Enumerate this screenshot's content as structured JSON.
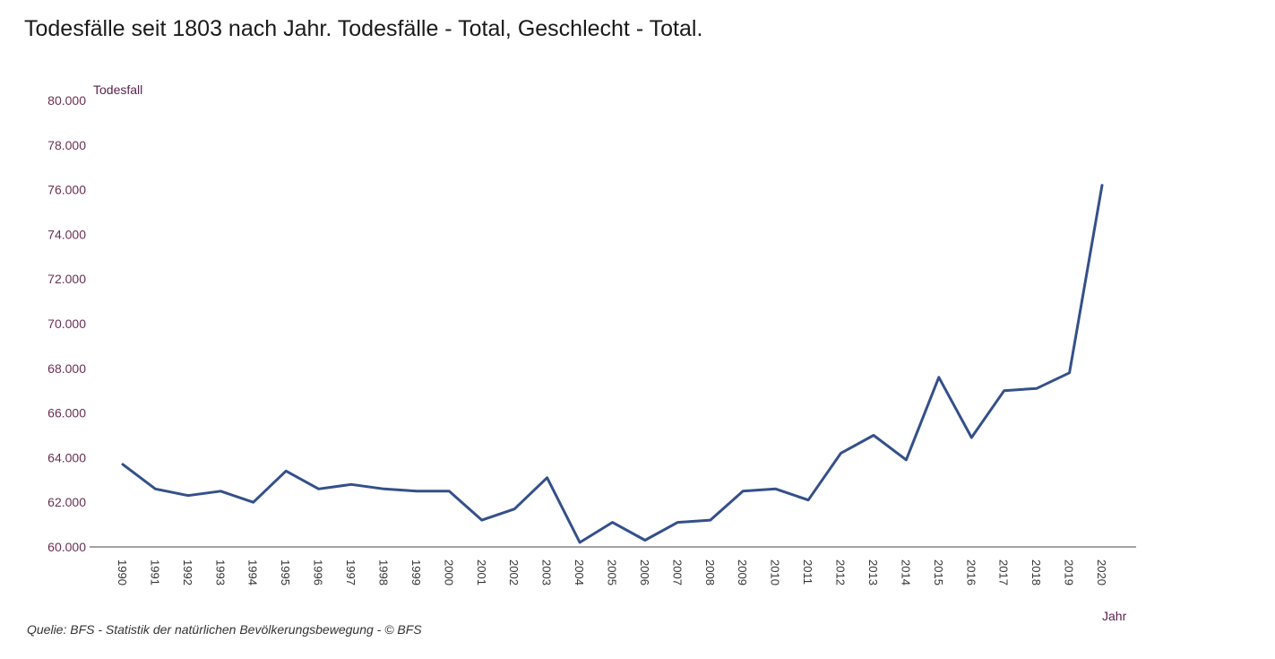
{
  "title": "Todesfälle seit 1803 nach Jahr. Todesfälle - Total, Geschlecht - Total.",
  "source": "Quelie: BFS - Statistik der natürlichen Bevölkerungsbewegung - © BFS",
  "colors": {
    "line": "#34508a",
    "axis": "#444444",
    "tick_label": "#6a2f52",
    "axis_title": "#5a1f4a"
  },
  "chart_data": {
    "type": "line",
    "title": "Todesfälle seit 1803 nach Jahr. Todesfälle - Total, Geschlecht - Total.",
    "xlabel": "Jahr",
    "ylabel": "Todesfall",
    "ylim": [
      60000,
      80000
    ],
    "yticks": [
      60000,
      62000,
      64000,
      66000,
      68000,
      70000,
      72000,
      74000,
      76000,
      78000,
      80000
    ],
    "ytick_labels": [
      "60.000",
      "62.000",
      "64.000",
      "66.000",
      "68.000",
      "70.000",
      "72.000",
      "74.000",
      "76.000",
      "78.000",
      "80.000"
    ],
    "grid": false,
    "categories": [
      "1990",
      "1991",
      "1992",
      "1993",
      "1994",
      "1995",
      "1996",
      "1997",
      "1998",
      "1999",
      "2000",
      "2001",
      "2002",
      "2003",
      "2004",
      "2005",
      "2006",
      "2007",
      "2008",
      "2009",
      "2010",
      "2011",
      "2012",
      "2013",
      "2014",
      "2015",
      "2016",
      "2017",
      "2018",
      "2019",
      "2020"
    ],
    "series": [
      {
        "values": [
          63700,
          62600,
          62300,
          62500,
          62000,
          63400,
          62600,
          62800,
          62600,
          62500,
          62500,
          61200,
          61700,
          63100,
          60200,
          61100,
          60300,
          61100,
          61200,
          62500,
          62600,
          62100,
          64200,
          65000,
          63900,
          67600,
          64900,
          67000,
          67100,
          67800,
          76200
        ]
      }
    ]
  }
}
